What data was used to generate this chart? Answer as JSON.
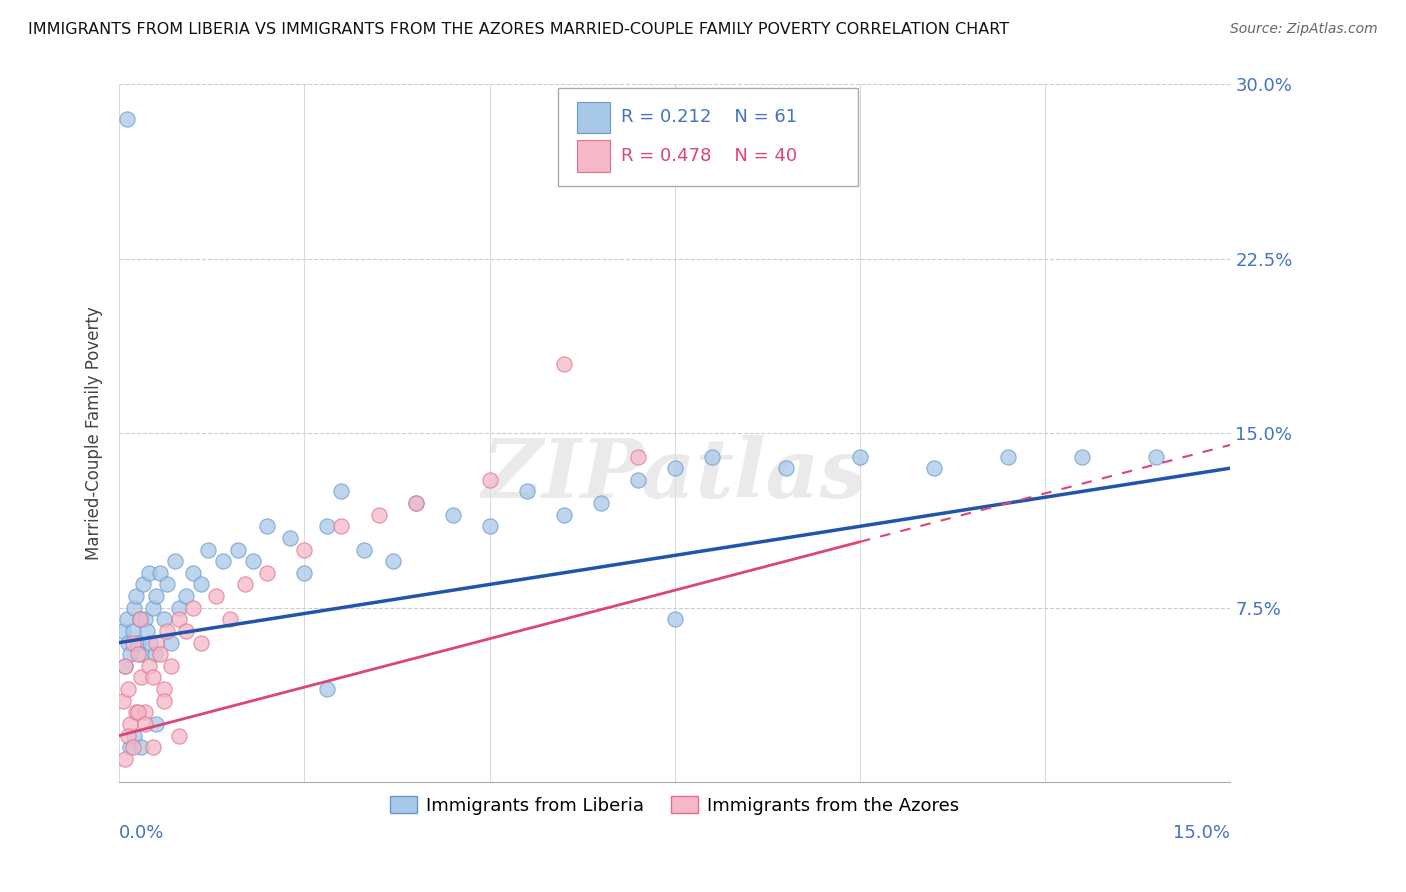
{
  "title": "IMMIGRANTS FROM LIBERIA VS IMMIGRANTS FROM THE AZORES MARRIED-COUPLE FAMILY POVERTY CORRELATION CHART",
  "source": "Source: ZipAtlas.com",
  "ylabel": "Married-Couple Family Poverty",
  "ytick_values": [
    0.0,
    7.5,
    15.0,
    22.5,
    30.0
  ],
  "xlim": [
    0.0,
    15.0
  ],
  "ylim": [
    0.0,
    30.0
  ],
  "legend1_label": "Immigrants from Liberia",
  "legend2_label": "Immigrants from the Azores",
  "R1": "0.212",
  "N1": "61",
  "R2": "0.478",
  "N2": "40",
  "color_blue": "#a8c8e8",
  "color_blue_edge": "#6699cc",
  "color_pink": "#f4b8c8",
  "color_pink_edge": "#e07090",
  "color_blue_line": "#2255aa",
  "color_pink_line": "#dd4477",
  "scatter_liberia_x": [
    0.05,
    0.08,
    0.1,
    0.12,
    0.15,
    0.18,
    0.2,
    0.22,
    0.25,
    0.28,
    0.3,
    0.32,
    0.35,
    0.38,
    0.4,
    0.42,
    0.45,
    0.48,
    0.5,
    0.55,
    0.6,
    0.65,
    0.7,
    0.75,
    0.8,
    0.9,
    1.0,
    1.1,
    1.2,
    1.4,
    1.6,
    1.8,
    2.0,
    2.3,
    2.5,
    2.8,
    3.0,
    3.3,
    3.7,
    4.0,
    4.5,
    5.0,
    5.5,
    6.0,
    6.5,
    7.0,
    7.5,
    8.0,
    9.0,
    10.0,
    11.0,
    12.0,
    13.0,
    14.0,
    0.1,
    0.15,
    0.2,
    0.3,
    0.5,
    2.8,
    7.5
  ],
  "scatter_liberia_y": [
    6.5,
    5.0,
    7.0,
    6.0,
    5.5,
    6.5,
    7.5,
    8.0,
    6.0,
    7.0,
    5.5,
    8.5,
    7.0,
    6.5,
    9.0,
    6.0,
    7.5,
    5.5,
    8.0,
    9.0,
    7.0,
    8.5,
    6.0,
    9.5,
    7.5,
    8.0,
    9.0,
    8.5,
    10.0,
    9.5,
    10.0,
    9.5,
    11.0,
    10.5,
    9.0,
    11.0,
    12.5,
    10.0,
    9.5,
    12.0,
    11.5,
    11.0,
    12.5,
    11.5,
    12.0,
    13.0,
    13.5,
    14.0,
    13.5,
    14.0,
    13.5,
    14.0,
    14.0,
    14.0,
    28.5,
    1.5,
    2.0,
    1.5,
    2.5,
    4.0,
    7.0
  ],
  "scatter_azores_x": [
    0.05,
    0.08,
    0.12,
    0.15,
    0.18,
    0.22,
    0.25,
    0.28,
    0.3,
    0.35,
    0.4,
    0.45,
    0.5,
    0.55,
    0.6,
    0.65,
    0.7,
    0.8,
    0.9,
    1.0,
    1.1,
    1.3,
    1.5,
    1.7,
    2.0,
    2.5,
    3.0,
    3.5,
    4.0,
    5.0,
    6.0,
    7.0,
    0.08,
    0.12,
    0.18,
    0.25,
    0.35,
    0.45,
    0.6,
    0.8
  ],
  "scatter_azores_y": [
    3.5,
    5.0,
    4.0,
    2.5,
    6.0,
    3.0,
    5.5,
    7.0,
    4.5,
    3.0,
    5.0,
    4.5,
    6.0,
    5.5,
    4.0,
    6.5,
    5.0,
    7.0,
    6.5,
    7.5,
    6.0,
    8.0,
    7.0,
    8.5,
    9.0,
    10.0,
    11.0,
    11.5,
    12.0,
    13.0,
    18.0,
    14.0,
    1.0,
    2.0,
    1.5,
    3.0,
    2.5,
    1.5,
    3.5,
    2.0
  ],
  "watermark_text": "ZIPatlas",
  "line1_x0": 0.0,
  "line1_y0": 6.0,
  "line1_x1": 15.0,
  "line1_y1": 13.5,
  "line2_x0": 0.0,
  "line2_y0": 2.0,
  "line2_x1": 15.0,
  "line2_y1": 14.5
}
